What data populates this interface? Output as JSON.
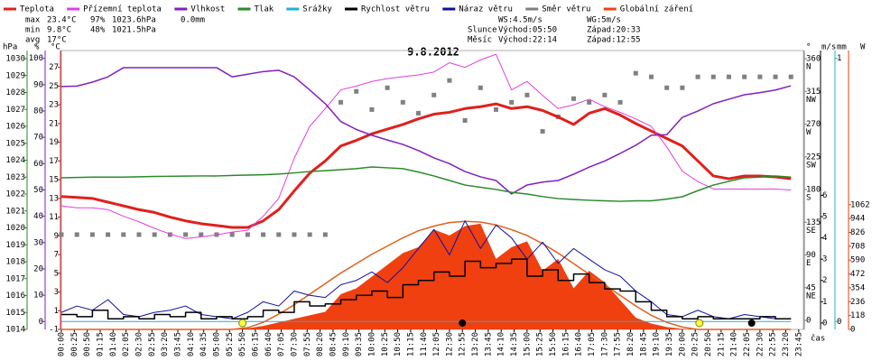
{
  "chart_data": {
    "type": "line",
    "title": "9.8.2012",
    "xlabel": "čas",
    "xlim": [
      0,
      1434
    ],
    "xticks": [
      {
        "value": 0,
        "label": "00:00"
      },
      {
        "value": 25,
        "label": "00:25"
      },
      {
        "value": 50,
        "label": "00:50"
      },
      {
        "value": 75,
        "label": "01:15"
      },
      {
        "value": 100,
        "label": "01:40"
      },
      {
        "value": 125,
        "label": "02:05"
      },
      {
        "value": 150,
        "label": "02:30"
      },
      {
        "value": 175,
        "label": "02:55"
      },
      {
        "value": 200,
        "label": "03:20"
      },
      {
        "value": 225,
        "label": "03:45"
      },
      {
        "value": 250,
        "label": "04:10"
      },
      {
        "value": 275,
        "label": "04:35"
      },
      {
        "value": 300,
        "label": "05:00"
      },
      {
        "value": 325,
        "label": "05:25"
      },
      {
        "value": 350,
        "label": "05:50"
      },
      {
        "value": 375,
        "label": "06:15"
      },
      {
        "value": 400,
        "label": "06:40"
      },
      {
        "value": 425,
        "label": "07:05"
      },
      {
        "value": 450,
        "label": "07:30"
      },
      {
        "value": 475,
        "label": "07:55"
      },
      {
        "value": 500,
        "label": "08:20"
      },
      {
        "value": 525,
        "label": "08:45"
      },
      {
        "value": 550,
        "label": "09:10"
      },
      {
        "value": 575,
        "label": "09:35"
      },
      {
        "value": 600,
        "label": "10:00"
      },
      {
        "value": 625,
        "label": "10:25"
      },
      {
        "value": 650,
        "label": "10:50"
      },
      {
        "value": 675,
        "label": "11:15"
      },
      {
        "value": 700,
        "label": "11:40"
      },
      {
        "value": 725,
        "label": "12:05"
      },
      {
        "value": 750,
        "label": "12:30"
      },
      {
        "value": 775,
        "label": "12:55"
      },
      {
        "value": 800,
        "label": "13:20"
      },
      {
        "value": 825,
        "label": "13:45"
      },
      {
        "value": 850,
        "label": "14:10"
      },
      {
        "value": 875,
        "label": "14:35"
      },
      {
        "value": 900,
        "label": "15:00"
      },
      {
        "value": 925,
        "label": "15:25"
      },
      {
        "value": 950,
        "label": "15:50"
      },
      {
        "value": 975,
        "label": "16:15"
      },
      {
        "value": 1000,
        "label": "16:40"
      },
      {
        "value": 1025,
        "label": "17:05"
      },
      {
        "value": 1050,
        "label": "17:30"
      },
      {
        "value": 1075,
        "label": "17:55"
      },
      {
        "value": 1100,
        "label": "18:20"
      },
      {
        "value": 1125,
        "label": "18:45"
      },
      {
        "value": 1150,
        "label": "19:10"
      },
      {
        "value": 1175,
        "label": "19:35"
      },
      {
        "value": 1200,
        "label": "20:00"
      },
      {
        "value": 1225,
        "label": "20:25"
      },
      {
        "value": 1250,
        "label": "20:50"
      },
      {
        "value": 1275,
        "label": "21:15"
      },
      {
        "value": 1300,
        "label": "21:40"
      },
      {
        "value": 1325,
        "label": "22:05"
      },
      {
        "value": 1350,
        "label": "22:30"
      },
      {
        "value": 1375,
        "label": "22:55"
      },
      {
        "value": 1400,
        "label": "23:20"
      },
      {
        "value": 1425,
        "label": "23:45"
      }
    ],
    "axes": {
      "hpa": {
        "label": "hPa",
        "color": "#2a8a2a",
        "lim": [
          1014,
          1030.48
        ],
        "ticks": [
          1014,
          1015,
          1016,
          1017,
          1018,
          1019,
          1020,
          1021,
          1022,
          1023,
          1024,
          1025,
          1026,
          1027,
          1028,
          1029,
          1030
        ]
      },
      "pct": {
        "label": "%",
        "color": "#8020c0",
        "lim": [
          -3,
          103
        ],
        "ticks": [
          0,
          10,
          20,
          30,
          40,
          50,
          60,
          70,
          80,
          90,
          100
        ]
      },
      "temp": {
        "label": "°C",
        "color": "#d01010",
        "lim": [
          -1,
          28.8
        ],
        "ticks": [
          -1,
          1,
          3,
          5,
          7,
          9,
          11,
          13,
          15,
          17,
          19,
          21,
          23,
          25,
          27
        ]
      },
      "dir": {
        "label": "°",
        "color": "#808080",
        "lim": [
          -12.4,
          371.2
        ],
        "ticks": [
          0,
          {
            "value": 45,
            "label": "NE"
          },
          {
            "value": 90,
            "label": "E"
          },
          {
            "value": 135,
            "label": "SE"
          },
          {
            "value": 180,
            "label": "S"
          },
          {
            "value": 225,
            "label": "SW"
          },
          {
            "value": 270,
            "label": "W"
          },
          {
            "value": 315,
            "label": "NW"
          },
          {
            "value": 360,
            "label": "N"
          }
        ]
      },
      "ms": {
        "label": "m/s",
        "color": "#000000",
        "lim": [
          -0.3,
          12.8
        ],
        "ticks": [
          0,
          1,
          2,
          3,
          4,
          5,
          6
        ]
      },
      "mm": {
        "label": "mm",
        "color": "#20b0d0",
        "lim": [
          -0.03,
          1.03
        ],
        "ticks": [
          0,
          1
        ]
      },
      "w": {
        "label": "W",
        "color": "#e04010",
        "lim": [
          0,
          2375
        ],
        "ticks": [
          0,
          118,
          236,
          354,
          472,
          590,
          708,
          826,
          944,
          1062
        ]
      }
    },
    "x": [
      0,
      30,
      60,
      90,
      120,
      150,
      180,
      210,
      240,
      270,
      300,
      330,
      360,
      390,
      420,
      450,
      480,
      510,
      540,
      570,
      600,
      630,
      660,
      690,
      720,
      750,
      780,
      810,
      840,
      870,
      900,
      930,
      960,
      990,
      1020,
      1050,
      1080,
      1110,
      1140,
      1170,
      1200,
      1230,
      1260,
      1290,
      1320,
      1350,
      1380,
      1410
    ],
    "series": [
      {
        "name": "Teplota",
        "color": "#e0201c",
        "axis": "temp",
        "style": "line",
        "width": 3,
        "values": [
          13.2,
          13.1,
          13.0,
          12.6,
          12.2,
          11.8,
          11.5,
          11.0,
          10.6,
          10.3,
          10.1,
          9.9,
          9.9,
          10.6,
          11.8,
          13.8,
          15.7,
          17.0,
          18.6,
          19.2,
          19.9,
          20.4,
          20.9,
          21.5,
          22.0,
          22.2,
          22.6,
          22.8,
          23.1,
          22.6,
          22.8,
          22.4,
          21.7,
          20.9,
          22.1,
          22.6,
          21.9,
          21.0,
          20.2,
          19.4,
          18.6,
          17.0,
          15.4,
          15.1,
          15.4,
          15.4,
          15.3,
          15.1
        ]
      },
      {
        "name": "Přízemní teplota",
        "color": "#e040e0",
        "axis": "temp",
        "style": "line",
        "width": 1,
        "values": [
          12.2,
          12.0,
          12.0,
          11.8,
          11.1,
          10.5,
          9.8,
          9.2,
          8.7,
          8.9,
          9.1,
          9.4,
          9.6,
          11.1,
          13.0,
          17.3,
          20.7,
          22.6,
          24.6,
          25.0,
          25.5,
          25.8,
          26.0,
          26.2,
          26.5,
          27.5,
          27.0,
          27.8,
          28.4,
          24.6,
          25.5,
          24.0,
          22.6,
          23.0,
          23.6,
          22.8,
          22.2,
          21.5,
          20.7,
          18.5,
          15.9,
          14.8,
          14.0,
          14.0,
          14.0,
          14.0,
          14.0,
          13.9
        ]
      },
      {
        "name": "Vlhkost",
        "color": "#8020c0",
        "axis": "pct",
        "style": "line",
        "width": 1.5,
        "values": [
          89.3,
          89.5,
          91,
          93,
          96.5,
          96.5,
          96.5,
          96.5,
          96.5,
          96.5,
          96.5,
          93,
          94,
          95,
          95.5,
          93,
          88,
          82.8,
          76,
          73,
          70.8,
          69,
          67.3,
          65,
          62.2,
          60,
          57,
          55,
          53.6,
          48.5,
          51.9,
          53,
          53.6,
          56,
          58.7,
          61,
          63.9,
          67,
          70.8,
          71,
          77.6,
          80,
          82.8,
          84.5,
          86.2,
          87,
          88,
          89.6
        ]
      },
      {
        "name": "Tlak",
        "color": "#2a8a2a",
        "axis": "hpa",
        "style": "line",
        "width": 1.5,
        "values": [
          1022.96,
          1022.98,
          1023.0,
          1023.0,
          1023.0,
          1023.02,
          1023.04,
          1023.05,
          1023.06,
          1023.07,
          1023.07,
          1023.1,
          1023.12,
          1023.14,
          1023.18,
          1023.25,
          1023.33,
          1023.38,
          1023.44,
          1023.5,
          1023.6,
          1023.55,
          1023.5,
          1023.3,
          1023.07,
          1022.8,
          1022.53,
          1022.4,
          1022.27,
          1022.1,
          1022.0,
          1021.85,
          1021.73,
          1021.68,
          1021.63,
          1021.6,
          1021.57,
          1021.6,
          1021.6,
          1021.7,
          1021.84,
          1022.2,
          1022.53,
          1022.75,
          1022.96,
          1023.0,
          1023.07,
          1023.0
        ]
      },
      {
        "name": "Srážky",
        "color": "#20b0d0",
        "axis": "mm",
        "style": "line",
        "width": 1,
        "values": [
          0,
          0,
          0,
          0,
          0,
          0,
          0,
          0,
          0,
          0,
          0,
          0,
          0,
          0,
          0,
          0,
          0,
          0,
          0,
          0,
          0,
          0,
          0,
          0,
          0,
          0,
          0,
          0,
          0,
          0,
          0,
          0,
          0,
          0,
          0,
          0,
          0,
          0,
          0,
          0,
          0,
          0,
          0,
          0,
          0,
          0,
          0,
          0
        ]
      },
      {
        "name": "Rychlost větru",
        "color": "#000000",
        "axis": "ms",
        "style": "step",
        "width": 1.5,
        "values": [
          0.4,
          0.3,
          0.6,
          0.2,
          0.3,
          0.2,
          0.4,
          0.3,
          0.5,
          0.2,
          0.3,
          0.2,
          0.3,
          0.6,
          0.5,
          1.0,
          0.8,
          0.9,
          1.1,
          1.3,
          1.5,
          1.2,
          1.8,
          2.0,
          2.4,
          2.2,
          2.9,
          2.6,
          2.8,
          3.0,
          2.2,
          2.5,
          2.0,
          2.3,
          1.9,
          1.6,
          1.5,
          1.0,
          0.6,
          0.3,
          0.2,
          0.3,
          0.2,
          0.2,
          0.2,
          0.3,
          0.2,
          0.2
        ]
      },
      {
        "name": "Náraz větru",
        "color": "#1010a0",
        "axis": "ms",
        "style": "line",
        "width": 1,
        "values": [
          0.5,
          0.8,
          0.6,
          1.1,
          0.4,
          0.3,
          0.5,
          0.6,
          0.8,
          0.4,
          0.3,
          0.2,
          0.5,
          1.0,
          0.8,
          1.5,
          1.3,
          1.2,
          1.8,
          2.0,
          2.4,
          1.9,
          2.6,
          3.5,
          4.4,
          3.2,
          4.8,
          3.5,
          4.6,
          4.0,
          3.0,
          3.8,
          2.8,
          3.5,
          3.0,
          2.5,
          2.2,
          1.5,
          1.0,
          0.4,
          0.3,
          0.6,
          0.3,
          0.2,
          0.4,
          0.3,
          0.2,
          0.2
        ]
      },
      {
        "name": "Směr větru",
        "color": "#808080",
        "axis": "dir",
        "style": "points",
        "width": 5,
        "values": [
          118,
          118,
          118,
          118,
          118,
          118,
          118,
          118,
          118,
          118,
          118,
          118,
          118,
          118,
          118,
          118,
          118,
          118,
          300,
          315,
          290,
          320,
          300,
          285,
          310,
          330,
          275,
          320,
          290,
          300,
          310,
          260,
          280,
          305,
          300,
          310,
          300,
          340,
          335,
          320,
          320,
          335,
          335,
          335,
          335,
          335,
          335,
          335
        ]
      },
      {
        "name": "Globální záření",
        "color": "#f04010",
        "axis": "w",
        "style": "area",
        "width": 1,
        "values": [
          0,
          0,
          0,
          0,
          0,
          0,
          0,
          0,
          0,
          0,
          0,
          0,
          10,
          30,
          60,
          90,
          120,
          150,
          300,
          350,
          450,
          550,
          650,
          700,
          850,
          800,
          880,
          900,
          600,
          700,
          750,
          500,
          600,
          350,
          500,
          400,
          250,
          100,
          50,
          20,
          5,
          0,
          0,
          0,
          0,
          0,
          0,
          0
        ]
      }
    ],
    "radiation_clear_sky": {
      "color": "#e06020",
      "axis": "w",
      "values": [
        0,
        0,
        0,
        0,
        0,
        0,
        0,
        0,
        0,
        0,
        0,
        0,
        15,
        60,
        130,
        210,
        300,
        390,
        480,
        560,
        640,
        710,
        780,
        840,
        880,
        910,
        920,
        915,
        890,
        850,
        800,
        730,
        650,
        560,
        470,
        380,
        290,
        200,
        120,
        60,
        20,
        0,
        0,
        0,
        0,
        0,
        0,
        0
      ]
    },
    "stats": [
      [
        {
          "text": "max",
          "color": "#000000"
        },
        {
          "text": "23.4°C",
          "color": "#d01010"
        },
        {
          "text": "97%",
          "color": "#8020c0"
        },
        {
          "text": "1023.6hPa",
          "color": "#8020c0"
        },
        {
          "text": "0.0mm",
          "color": "#20b0d0"
        }
      ],
      [
        {
          "text": "min",
          "color": "#000000"
        },
        {
          "text": "9.8°C",
          "color": "#d01010"
        },
        {
          "text": "48%",
          "color": "#8020c0"
        },
        {
          "text": "1021.5hPa",
          "color": "#1010a0"
        }
      ],
      [
        {
          "text": "avg",
          "color": "#000000"
        },
        {
          "text": "17°C",
          "color": "#000000"
        }
      ]
    ],
    "wind": [
      "WS:4.5m/s",
      "WG:5m/s"
    ],
    "sun": {
      "label": "Slunce",
      "rise": "Východ:05:50",
      "set": "Západ:20:33"
    },
    "moon": {
      "label": "Měsíc",
      "rise": "Východ:22:14",
      "set": "Západ:12:55"
    }
  }
}
